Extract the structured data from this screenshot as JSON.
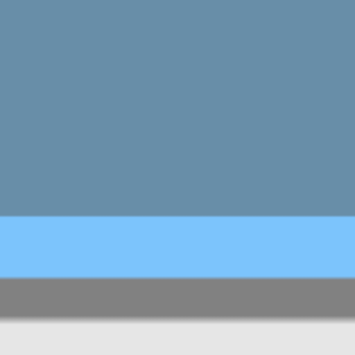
{
  "colors": {
    "top_band": "#688ea8",
    "middle_band": "#7cc4fc",
    "bottom_band": "#818181",
    "footer": "#e6e6e6"
  }
}
